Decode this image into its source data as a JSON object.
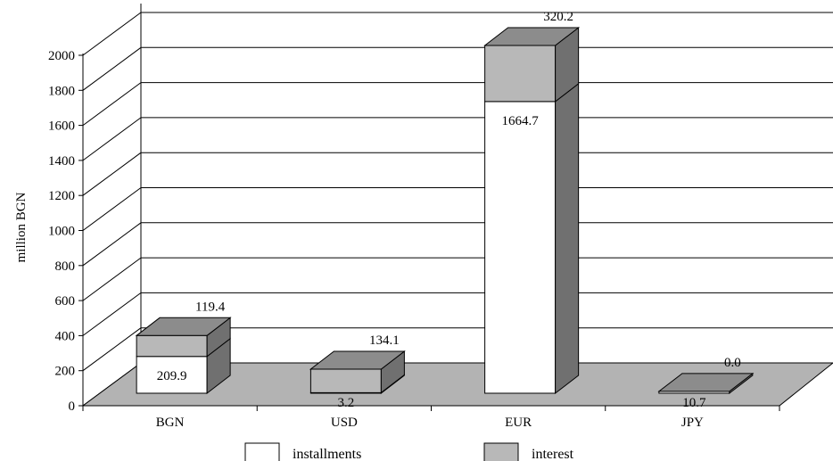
{
  "chart_data": {
    "type": "bar",
    "stacked": true,
    "three_d": true,
    "title": "",
    "xlabel": "",
    "ylabel": "million BGN",
    "ylim": [
      0,
      2000
    ],
    "yticks": [
      0,
      200,
      400,
      600,
      800,
      1000,
      1200,
      1400,
      1600,
      1800,
      2000
    ],
    "grid": true,
    "legend_position": "bottom",
    "categories": [
      "BGN",
      "USD",
      "EUR",
      "JPY"
    ],
    "series": [
      {
        "name": "installments",
        "values": [
          209.9,
          3.2,
          1664.7,
          10.7
        ],
        "labels": [
          "209.9",
          "3.2",
          "1664.7",
          "10.7"
        ],
        "color": "#ffffff"
      },
      {
        "name": "interest",
        "values": [
          119.4,
          134.1,
          320.2,
          0.0
        ],
        "labels": [
          "119.4",
          "134.1",
          "320.2",
          "0.0"
        ],
        "color": "#b8b8b8"
      }
    ],
    "colors": {
      "floor": "#b3b3b3",
      "side": "#707070",
      "top": "#8c8c8c",
      "axis": "#000000"
    }
  }
}
